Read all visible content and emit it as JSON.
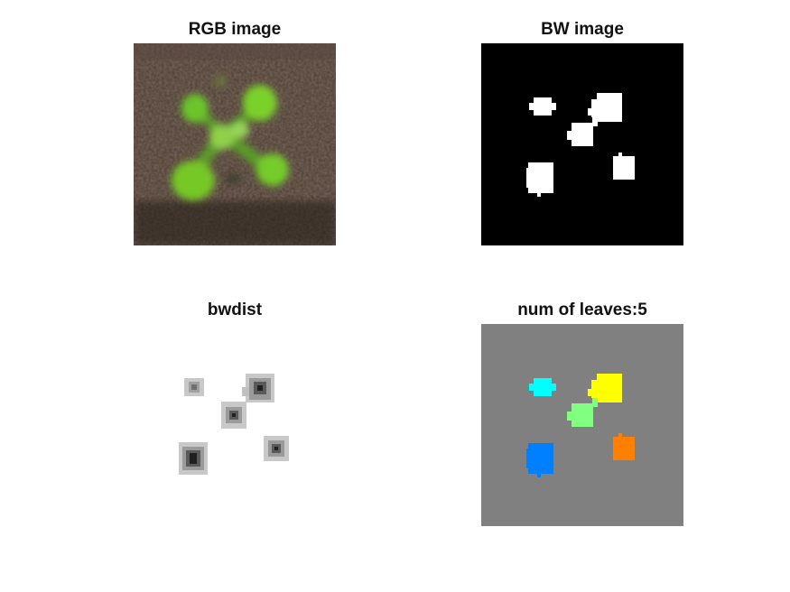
{
  "figure": {
    "panels": [
      {
        "title": "RGB image"
      },
      {
        "title": "BW image"
      },
      {
        "title": "bwdist"
      },
      {
        "title": "num of leaves:5"
      }
    ]
  },
  "colors": {
    "soil_dark": "#3b2a22",
    "soil_mid": "#5a4638",
    "leaf_green": "#7ad12b",
    "leaf_light": "#9bde4a",
    "bw_background": "#000000",
    "bw_foreground": "#ffffff",
    "label_background": "#808080",
    "label_cyan": "#00ffff",
    "label_yellow": "#ffff00",
    "label_lightgreen": "#80ff80",
    "label_blue": "#0080ff",
    "label_orange": "#ff8000"
  }
}
